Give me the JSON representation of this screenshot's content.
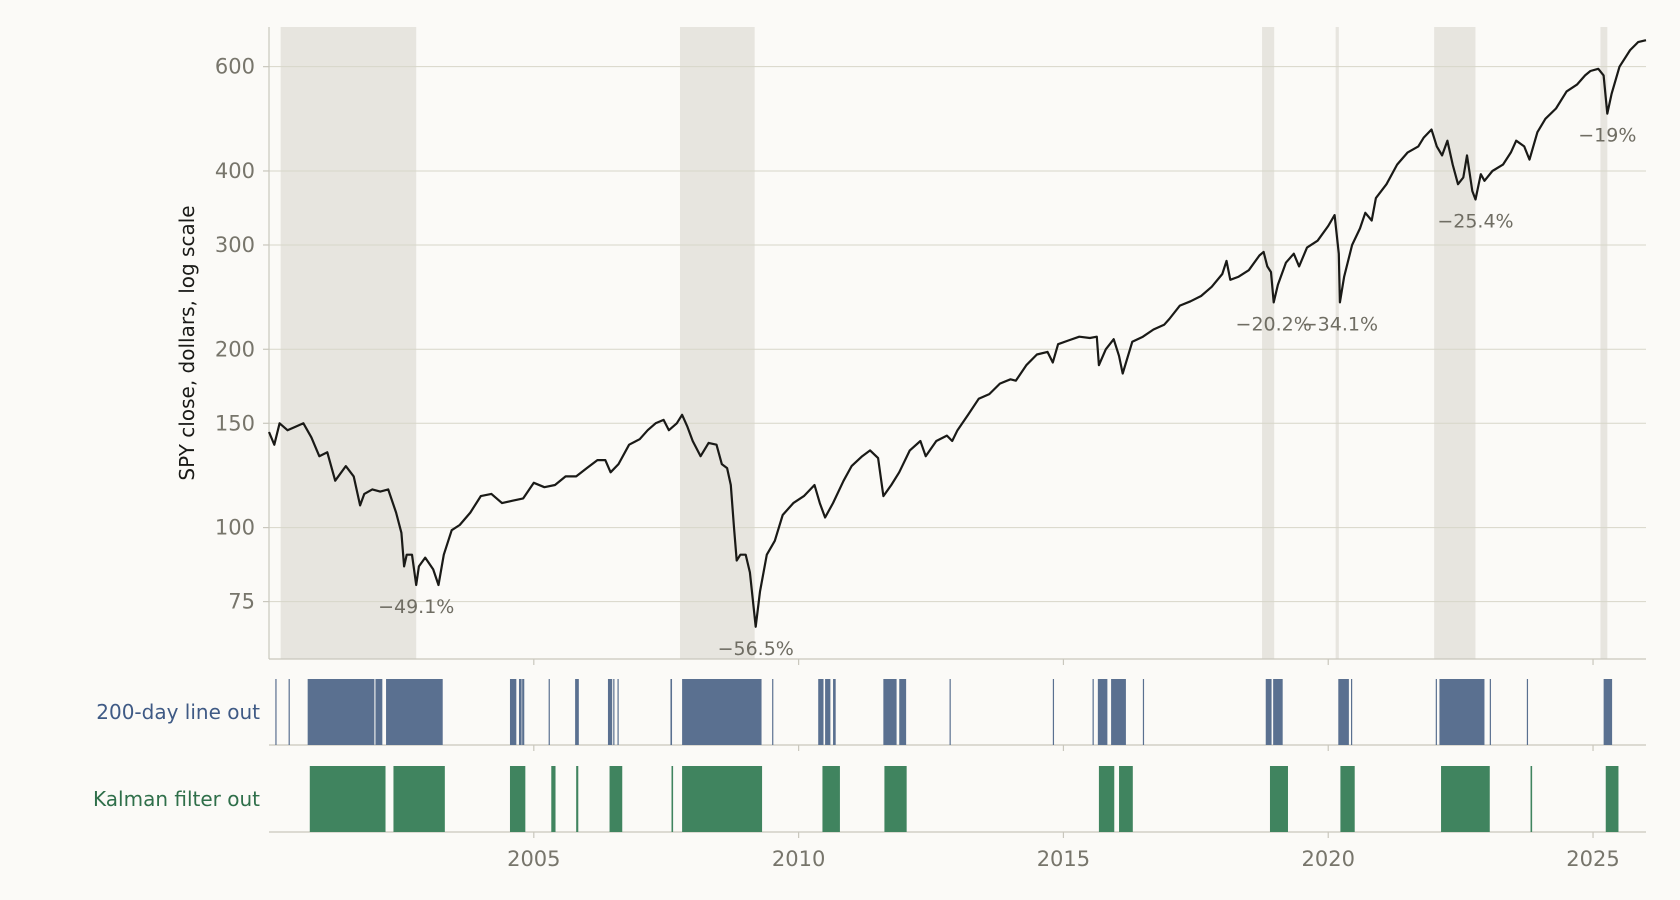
{
  "chart_data": {
    "type": "line",
    "ylabel": "SPY close, dollars, log scale",
    "yscale": "log",
    "xlim": [
      2000.0,
      2026.0
    ],
    "ylim": [
      60,
      700
    ],
    "grid": "horizontal",
    "yticks": [
      75,
      100,
      150,
      200,
      300,
      400,
      600
    ],
    "ytick_labels": [
      "75",
      "100",
      "150",
      "200",
      "300",
      "400",
      "600"
    ],
    "xticks": [
      2005,
      2010,
      2015,
      2020,
      2025
    ],
    "xtick_labels": [
      "2005",
      "2010",
      "2015",
      "2020",
      "2025"
    ],
    "colors": {
      "price_line": "#1a1a17",
      "drawdown_shade": "#e7e5df",
      "grid": "#d7d6c9",
      "axis": "#c9c7bd",
      "tick_text": "#77756b",
      "annotation_text": "#6f6d63",
      "ma_band": "#5a7090",
      "ma_label": "#3f5a85",
      "kalman_band": "#40845f",
      "kalman_label": "#2f6f4a"
    },
    "price": [
      [
        2000.0,
        145
      ],
      [
        2000.1,
        138
      ],
      [
        2000.2,
        150
      ],
      [
        2000.35,
        146
      ],
      [
        2000.5,
        148
      ],
      [
        2000.65,
        150
      ],
      [
        2000.8,
        142
      ],
      [
        2000.95,
        132
      ],
      [
        2001.1,
        134
      ],
      [
        2001.25,
        120
      ],
      [
        2001.45,
        127
      ],
      [
        2001.6,
        122
      ],
      [
        2001.72,
        109
      ],
      [
        2001.8,
        114
      ],
      [
        2001.95,
        116
      ],
      [
        2002.1,
        115
      ],
      [
        2002.25,
        116
      ],
      [
        2002.4,
        106
      ],
      [
        2002.5,
        98
      ],
      [
        2002.55,
        86
      ],
      [
        2002.6,
        90
      ],
      [
        2002.7,
        90
      ],
      [
        2002.78,
        80
      ],
      [
        2002.83,
        86
      ],
      [
        2002.95,
        89
      ],
      [
        2003.1,
        85
      ],
      [
        2003.2,
        80
      ],
      [
        2003.3,
        90
      ],
      [
        2003.45,
        99
      ],
      [
        2003.6,
        101
      ],
      [
        2003.8,
        106
      ],
      [
        2004.0,
        113
      ],
      [
        2004.2,
        114
      ],
      [
        2004.4,
        110
      ],
      [
        2004.6,
        111
      ],
      [
        2004.8,
        112
      ],
      [
        2005.0,
        119
      ],
      [
        2005.2,
        117
      ],
      [
        2005.4,
        118
      ],
      [
        2005.6,
        122
      ],
      [
        2005.8,
        122
      ],
      [
        2006.0,
        126
      ],
      [
        2006.2,
        130
      ],
      [
        2006.35,
        130
      ],
      [
        2006.45,
        124
      ],
      [
        2006.6,
        128
      ],
      [
        2006.8,
        138
      ],
      [
        2007.0,
        141
      ],
      [
        2007.15,
        146
      ],
      [
        2007.3,
        150
      ],
      [
        2007.45,
        152
      ],
      [
        2007.55,
        146
      ],
      [
        2007.7,
        150
      ],
      [
        2007.8,
        155
      ],
      [
        2007.9,
        148
      ],
      [
        2008.0,
        140
      ],
      [
        2008.15,
        132
      ],
      [
        2008.3,
        139
      ],
      [
        2008.45,
        138
      ],
      [
        2008.55,
        128
      ],
      [
        2008.65,
        126
      ],
      [
        2008.72,
        118
      ],
      [
        2008.78,
        100
      ],
      [
        2008.83,
        88
      ],
      [
        2008.9,
        90
      ],
      [
        2009.0,
        90
      ],
      [
        2009.08,
        84
      ],
      [
        2009.19,
        68
      ],
      [
        2009.27,
        78
      ],
      [
        2009.4,
        90
      ],
      [
        2009.55,
        95
      ],
      [
        2009.7,
        105
      ],
      [
        2009.9,
        110
      ],
      [
        2010.1,
        113
      ],
      [
        2010.3,
        118
      ],
      [
        2010.4,
        110
      ],
      [
        2010.5,
        104
      ],
      [
        2010.65,
        110
      ],
      [
        2010.85,
        120
      ],
      [
        2011.0,
        127
      ],
      [
        2011.2,
        132
      ],
      [
        2011.35,
        135
      ],
      [
        2011.5,
        131
      ],
      [
        2011.6,
        113
      ],
      [
        2011.75,
        118
      ],
      [
        2011.9,
        124
      ],
      [
        2012.1,
        135
      ],
      [
        2012.3,
        140
      ],
      [
        2012.4,
        132
      ],
      [
        2012.6,
        140
      ],
      [
        2012.8,
        143
      ],
      [
        2012.9,
        140
      ],
      [
        2013.0,
        146
      ],
      [
        2013.2,
        155
      ],
      [
        2013.4,
        165
      ],
      [
        2013.6,
        168
      ],
      [
        2013.8,
        175
      ],
      [
        2014.0,
        178
      ],
      [
        2014.1,
        177
      ],
      [
        2014.3,
        188
      ],
      [
        2014.5,
        196
      ],
      [
        2014.7,
        198
      ],
      [
        2014.8,
        190
      ],
      [
        2014.9,
        204
      ],
      [
        2015.1,
        207
      ],
      [
        2015.3,
        210
      ],
      [
        2015.5,
        209
      ],
      [
        2015.63,
        210
      ],
      [
        2015.67,
        188
      ],
      [
        2015.8,
        200
      ],
      [
        2015.95,
        208
      ],
      [
        2016.05,
        195
      ],
      [
        2016.12,
        182
      ],
      [
        2016.3,
        206
      ],
      [
        2016.5,
        210
      ],
      [
        2016.7,
        216
      ],
      [
        2016.9,
        220
      ],
      [
        2017.0,
        225
      ],
      [
        2017.2,
        237
      ],
      [
        2017.4,
        241
      ],
      [
        2017.6,
        246
      ],
      [
        2017.8,
        255
      ],
      [
        2018.0,
        268
      ],
      [
        2018.08,
        282
      ],
      [
        2018.15,
        262
      ],
      [
        2018.3,
        265
      ],
      [
        2018.5,
        272
      ],
      [
        2018.7,
        288
      ],
      [
        2018.78,
        292
      ],
      [
        2018.85,
        276
      ],
      [
        2018.92,
        270
      ],
      [
        2018.97,
        240
      ],
      [
        2019.05,
        257
      ],
      [
        2019.2,
        280
      ],
      [
        2019.35,
        290
      ],
      [
        2019.45,
        276
      ],
      [
        2019.6,
        297
      ],
      [
        2019.8,
        305
      ],
      [
        2020.0,
        323
      ],
      [
        2020.12,
        337
      ],
      [
        2020.2,
        290
      ],
      [
        2020.22,
        240
      ],
      [
        2020.3,
        265
      ],
      [
        2020.45,
        300
      ],
      [
        2020.6,
        320
      ],
      [
        2020.7,
        340
      ],
      [
        2020.82,
        330
      ],
      [
        2020.9,
        360
      ],
      [
        2021.1,
        380
      ],
      [
        2021.3,
        410
      ],
      [
        2021.5,
        430
      ],
      [
        2021.7,
        440
      ],
      [
        2021.8,
        455
      ],
      [
        2021.95,
        470
      ],
      [
        2022.05,
        440
      ],
      [
        2022.15,
        425
      ],
      [
        2022.25,
        450
      ],
      [
        2022.35,
        410
      ],
      [
        2022.45,
        380
      ],
      [
        2022.55,
        390
      ],
      [
        2022.62,
        425
      ],
      [
        2022.72,
        370
      ],
      [
        2022.78,
        358
      ],
      [
        2022.88,
        395
      ],
      [
        2022.95,
        385
      ],
      [
        2023.1,
        400
      ],
      [
        2023.3,
        410
      ],
      [
        2023.45,
        430
      ],
      [
        2023.55,
        450
      ],
      [
        2023.7,
        440
      ],
      [
        2023.8,
        418
      ],
      [
        2023.95,
        465
      ],
      [
        2024.1,
        490
      ],
      [
        2024.3,
        510
      ],
      [
        2024.5,
        545
      ],
      [
        2024.7,
        560
      ],
      [
        2024.85,
        580
      ],
      [
        2024.95,
        590
      ],
      [
        2025.1,
        595
      ],
      [
        2025.2,
        580
      ],
      [
        2025.27,
        500
      ],
      [
        2025.35,
        540
      ],
      [
        2025.5,
        600
      ],
      [
        2025.7,
        640
      ],
      [
        2025.85,
        660
      ],
      [
        2026.0,
        665
      ]
    ],
    "drawdowns": [
      {
        "start": 2000.22,
        "end": 2002.78,
        "label": "−49.1%"
      },
      {
        "start": 2007.76,
        "end": 2009.17,
        "label": "−56.5%"
      },
      {
        "start": 2018.75,
        "end": 2018.98,
        "label": "−20.2%"
      },
      {
        "start": 2020.14,
        "end": 2020.2,
        "label": "−34.1%"
      },
      {
        "start": 2022.0,
        "end": 2022.78,
        "label": "−25.4%"
      },
      {
        "start": 2025.14,
        "end": 2025.27,
        "label": "−19%"
      }
    ],
    "signal_rows": [
      {
        "label": "200-day line out",
        "periods": [
          [
            2000.12,
            2000.14
          ],
          [
            2000.37,
            2000.39
          ],
          [
            2000.73,
            2001.99
          ],
          [
            2002.01,
            2002.14
          ],
          [
            2002.21,
            2003.28
          ],
          [
            2004.55,
            2004.67
          ],
          [
            2004.72,
            2004.77
          ],
          [
            2004.78,
            2004.82
          ],
          [
            2005.28,
            2005.3
          ],
          [
            2005.78,
            2005.85
          ],
          [
            2006.4,
            2006.48
          ],
          [
            2006.5,
            2006.52
          ],
          [
            2006.58,
            2006.6
          ],
          [
            2007.58,
            2007.61
          ],
          [
            2007.8,
            2009.3
          ],
          [
            2009.5,
            2009.52
          ],
          [
            2010.37,
            2010.47
          ],
          [
            2010.5,
            2010.6
          ],
          [
            2010.65,
            2010.7
          ],
          [
            2011.6,
            2011.85
          ],
          [
            2011.9,
            2012.03
          ],
          [
            2012.85,
            2012.87
          ],
          [
            2014.8,
            2014.82
          ],
          [
            2015.55,
            2015.57
          ],
          [
            2015.65,
            2015.83
          ],
          [
            2015.9,
            2016.18
          ],
          [
            2016.5,
            2016.52
          ],
          [
            2018.82,
            2018.93
          ],
          [
            2018.96,
            2019.14
          ],
          [
            2020.19,
            2020.39
          ],
          [
            2020.43,
            2020.45
          ],
          [
            2022.03,
            2022.05
          ],
          [
            2022.1,
            2022.95
          ],
          [
            2023.05,
            2023.07
          ],
          [
            2023.75,
            2023.77
          ],
          [
            2025.2,
            2025.36
          ]
        ]
      },
      {
        "label": "Kalman filter out",
        "periods": [
          [
            2000.77,
            2002.2
          ],
          [
            2002.35,
            2003.32
          ],
          [
            2004.55,
            2004.84
          ],
          [
            2005.33,
            2005.41
          ],
          [
            2005.8,
            2005.84
          ],
          [
            2006.43,
            2006.67
          ],
          [
            2007.6,
            2007.63
          ],
          [
            2007.8,
            2009.31
          ],
          [
            2010.45,
            2010.78
          ],
          [
            2011.62,
            2012.04
          ],
          [
            2015.67,
            2015.96
          ],
          [
            2016.05,
            2016.31
          ],
          [
            2018.9,
            2019.24
          ],
          [
            2020.23,
            2020.5
          ],
          [
            2022.13,
            2023.05
          ],
          [
            2023.82,
            2023.85
          ],
          [
            2025.24,
            2025.48
          ]
        ]
      }
    ]
  }
}
